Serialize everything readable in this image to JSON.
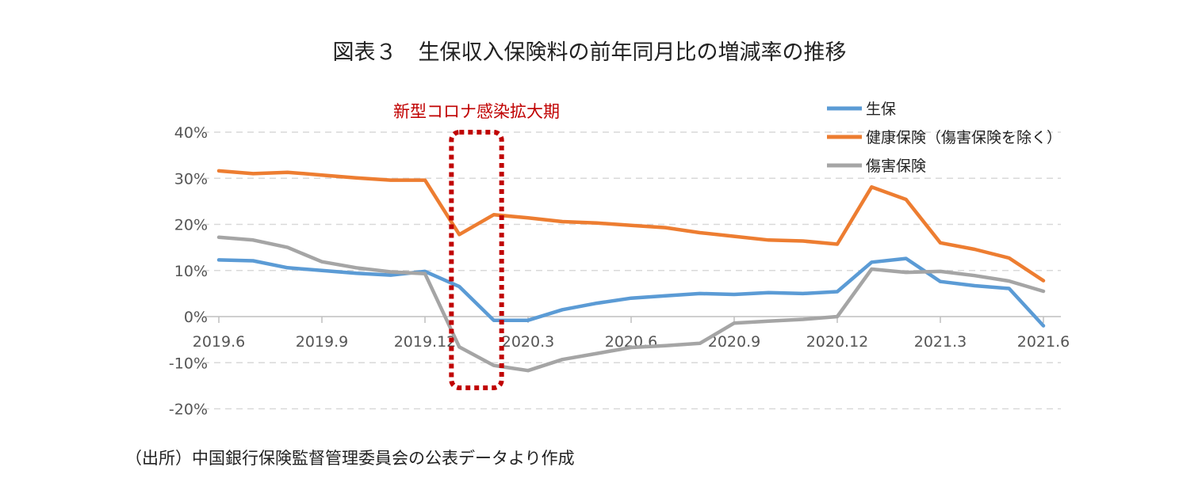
{
  "title": "図表３　生保収入保険料の前年同月比の増減率の推移",
  "source": "（出所）中国銀行保険監督管理委員会の公表データより作成",
  "chart_data": {
    "type": "line",
    "x": [
      "2019.6",
      "2019.7",
      "2019.8",
      "2019.9",
      "2019.10",
      "2019.11",
      "2019.12",
      "2020.1",
      "2020.2",
      "2020.3",
      "2020.4",
      "2020.5",
      "2020.6",
      "2020.7",
      "2020.8",
      "2020.9",
      "2020.10",
      "2020.11",
      "2020.12",
      "2021.1",
      "2021.2",
      "2021.3",
      "2021.4",
      "2021.5",
      "2021.6"
    ],
    "x_tick_labels": [
      "2019.6",
      "2019.9",
      "2019.12",
      "2020.3",
      "2020.6",
      "2020.9",
      "2020.12",
      "2021.3",
      "2021.6"
    ],
    "y_tick_labels": [
      "40%",
      "30%",
      "20%",
      "10%",
      "0%",
      "-10%",
      "-20%"
    ],
    "ylim": [
      -20,
      40
    ],
    "y_unit": "%",
    "grid": true,
    "legend_position": "top-right",
    "series": [
      {
        "name": "生保",
        "color": "#5b9bd5",
        "values": [
          12.3,
          12.1,
          10.6,
          10.0,
          9.4,
          9.0,
          9.8,
          6.5,
          -0.8,
          -0.8,
          1.5,
          2.9,
          4.0,
          4.5,
          5.0,
          4.8,
          5.2,
          5.0,
          5.4,
          11.8,
          12.6,
          7.6,
          6.7,
          6.1,
          -2.0
        ]
      },
      {
        "name": "健康保険（傷害保険を除く）",
        "color": "#ed7d31",
        "values": [
          31.6,
          31.0,
          31.3,
          30.7,
          30.1,
          29.6,
          29.6,
          17.8,
          22.1,
          21.4,
          20.6,
          20.3,
          19.8,
          19.3,
          18.2,
          17.4,
          16.6,
          16.4,
          15.7,
          28.1,
          25.4,
          16.0,
          14.6,
          12.7,
          7.8
        ]
      },
      {
        "name": "傷害保険",
        "color": "#a5a5a5",
        "values": [
          17.2,
          16.6,
          15.0,
          11.9,
          10.6,
          9.7,
          9.3,
          -6.6,
          -10.6,
          -11.7,
          -9.3,
          -8.0,
          -6.7,
          -6.3,
          -5.8,
          -1.4,
          -1.0,
          -0.6,
          0.0,
          10.3,
          9.6,
          9.8,
          8.9,
          7.7,
          5.5
        ]
      }
    ],
    "annotations": [
      {
        "text": "新型コロナ感染拡大期",
        "color": "#c00000",
        "x_range": [
          "2020.1",
          "2020.2"
        ]
      }
    ]
  }
}
